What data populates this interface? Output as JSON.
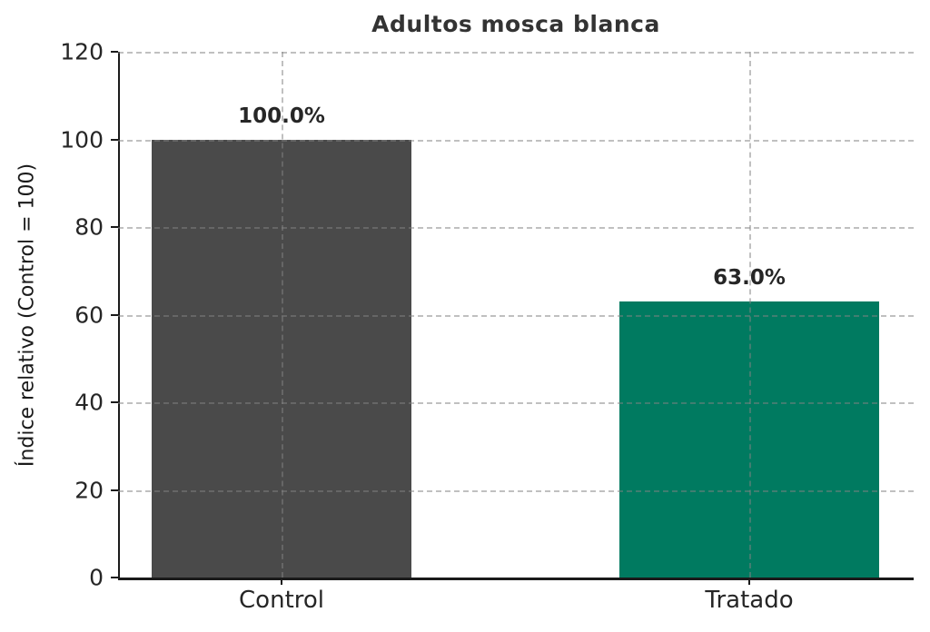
{
  "chart_data": {
    "type": "bar",
    "title": "Adultos mosca blanca",
    "xlabel": "",
    "ylabel": "Índice relativo (Control = 100)",
    "categories": [
      "Control",
      "Tratado"
    ],
    "values": [
      100.0,
      63.0
    ],
    "value_labels": [
      "100.0%",
      "63.0%"
    ],
    "bar_colors": [
      "#4a4a4a",
      "#007a60"
    ],
    "ylim": [
      0,
      120
    ],
    "yticks": [
      0,
      20,
      40,
      60,
      80,
      100,
      120
    ],
    "grid": true,
    "grid_style": "dashed",
    "legend_position": "none",
    "colors": {
      "title": "#333333",
      "tick_label": "#262626",
      "value_label": "#262626",
      "axis_label": "#1a1a1a",
      "axis": "#1a1a1a",
      "gridline": "rgba(130,130,130,0.5)"
    }
  }
}
